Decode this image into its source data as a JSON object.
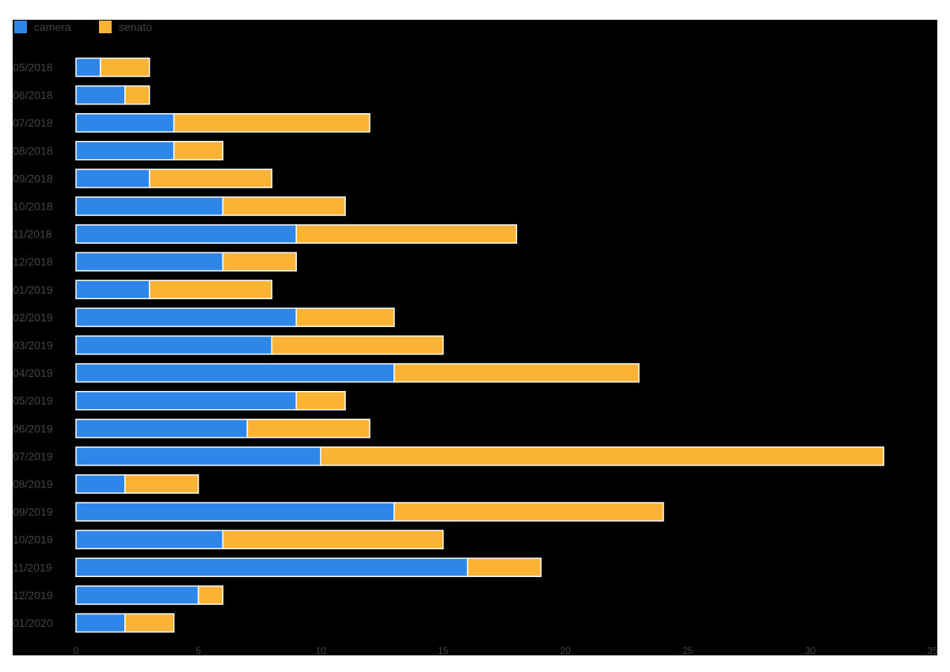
{
  "chart_data": {
    "type": "bar",
    "orientation": "horizontal",
    "stacked": true,
    "categories": [
      "05/2018",
      "06/2018",
      "07/2018",
      "08/2018",
      "09/2018",
      "10/2018",
      "11/2018",
      "12/2018",
      "01/2019",
      "02/2019",
      "03/2019",
      "04/2019",
      "05/2019",
      "06/2019",
      "07/2019",
      "08/2019",
      "09/2019",
      "10/2019",
      "11/2019",
      "12/2019",
      "01/2020"
    ],
    "series": [
      {
        "name": "camera",
        "color": "#2e86e8",
        "values": [
          1,
          2,
          4,
          4,
          3,
          6,
          9,
          6,
          3,
          9,
          8,
          13,
          9,
          7,
          10,
          2,
          13,
          6,
          16,
          5,
          2
        ]
      },
      {
        "name": "senato",
        "color": "#fbb335",
        "values": [
          2,
          1,
          8,
          2,
          5,
          5,
          9,
          3,
          5,
          4,
          7,
          10,
          2,
          5,
          23,
          3,
          11,
          9,
          3,
          1,
          2
        ]
      }
    ],
    "xlim": [
      0,
      35
    ],
    "xticks": [
      0,
      5,
      10,
      15,
      20,
      25,
      30,
      35
    ],
    "legend_position": "top-left",
    "title": "",
    "xlabel": "",
    "ylabel": "",
    "background": "#000000",
    "text_color": "#444444",
    "bar_stroke": "#ffffff"
  }
}
